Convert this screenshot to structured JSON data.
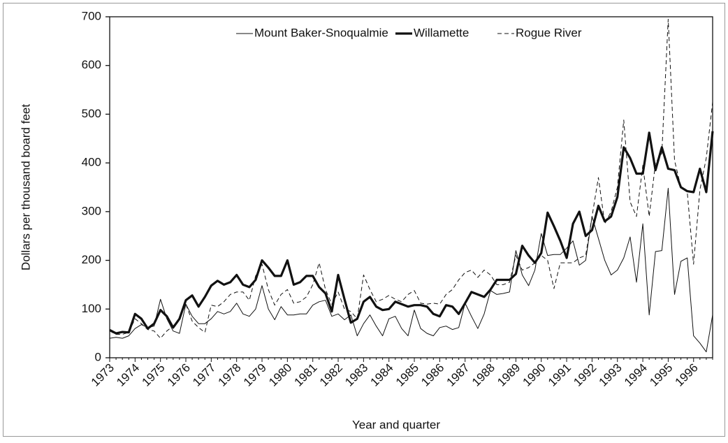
{
  "chart_data": {
    "type": "line",
    "x_label": "Year and quarter",
    "y_label": "Dollars per thousand board feet",
    "categories": [
      "1973",
      null,
      null,
      null,
      "1974",
      null,
      null,
      null,
      "1975",
      null,
      null,
      null,
      "1976",
      null,
      null,
      null,
      "1977",
      null,
      null,
      null,
      "1978",
      null,
      null,
      null,
      "1979",
      null,
      null,
      null,
      "1980",
      null,
      null,
      null,
      "1981",
      null,
      null,
      null,
      "1982",
      null,
      null,
      null,
      "1983",
      null,
      null,
      null,
      "1984",
      null,
      null,
      null,
      "1985",
      null,
      null,
      null,
      "1986",
      null,
      null,
      null,
      "1987",
      null,
      null,
      null,
      "1988",
      null,
      null,
      null,
      "1989",
      null,
      null,
      null,
      "1990",
      null,
      null,
      null,
      "1991",
      null,
      null,
      null,
      "1992",
      null,
      null,
      null,
      "1993",
      null,
      null,
      null,
      "1994",
      null,
      null,
      null,
      "1995",
      null,
      null,
      null,
      "1996",
      null,
      null,
      null
    ],
    "ylim": [
      0,
      700
    ],
    "yticks": [
      0,
      100,
      200,
      300,
      400,
      500,
      600,
      700
    ],
    "legend": "top",
    "series": [
      {
        "name": "Mount Baker-Snoqualmie",
        "color": "#111111",
        "style": "thin",
        "values": [
          40,
          42,
          40,
          45,
          60,
          68,
          62,
          65,
          120,
          80,
          55,
          50,
          110,
          85,
          70,
          70,
          80,
          95,
          90,
          95,
          112,
          90,
          85,
          100,
          148,
          100,
          78,
          105,
          88,
          88,
          90,
          90,
          108,
          115,
          118,
          85,
          90,
          78,
          88,
          45,
          70,
          88,
          65,
          45,
          80,
          85,
          60,
          45,
          98,
          60,
          50,
          45,
          62,
          65,
          58,
          62,
          112,
          85,
          60,
          90,
          138,
          130,
          132,
          135,
          220,
          170,
          148,
          180,
          255,
          210,
          212,
          212,
          225,
          240,
          190,
          200,
          290,
          245,
          200,
          170,
          180,
          205,
          248,
          155,
          275,
          88,
          218,
          220,
          348,
          130,
          198,
          205,
          45,
          30,
          12,
          88
        ]
      },
      {
        "name": "Willamette",
        "color": "#111111",
        "style": "thick",
        "values": [
          57,
          50,
          53,
          52,
          90,
          80,
          60,
          70,
          98,
          85,
          62,
          80,
          118,
          128,
          105,
          125,
          148,
          158,
          150,
          155,
          170,
          150,
          145,
          160,
          200,
          185,
          168,
          168,
          200,
          150,
          155,
          168,
          168,
          145,
          132,
          95,
          170,
          120,
          72,
          80,
          115,
          125,
          105,
          98,
          100,
          115,
          110,
          105,
          108,
          108,
          105,
          90,
          85,
          108,
          105,
          90,
          112,
          135,
          130,
          125,
          140,
          160,
          160,
          160,
          172,
          230,
          210,
          195,
          215,
          298,
          270,
          240,
          205,
          275,
          300,
          250,
          262,
          312,
          280,
          290,
          330,
          432,
          410,
          378,
          378,
          462,
          385,
          432,
          388,
          385,
          350,
          342,
          340,
          388,
          340,
          465
        ]
      },
      {
        "name": "Rogue River",
        "color": "#111111",
        "style": "dashed",
        "values": [
          55,
          48,
          48,
          52,
          80,
          70,
          58,
          55,
          40,
          55,
          65,
          80,
          110,
          75,
          62,
          52,
          108,
          105,
          115,
          130,
          135,
          135,
          118,
          168,
          192,
          140,
          108,
          130,
          140,
          112,
          115,
          125,
          150,
          195,
          140,
          110,
          135,
          100,
          95,
          80,
          170,
          140,
          115,
          120,
          128,
          120,
          115,
          130,
          138,
          112,
          110,
          112,
          110,
          130,
          140,
          160,
          175,
          180,
          165,
          180,
          170,
          150,
          150,
          155,
          210,
          180,
          185,
          195,
          210,
          200,
          142,
          195,
          195,
          195,
          205,
          210,
          290,
          370,
          275,
          300,
          350,
          488,
          320,
          290,
          395,
          290,
          400,
          420,
          695,
          405,
          350,
          340,
          192,
          345,
          410,
          525
        ]
      }
    ]
  }
}
